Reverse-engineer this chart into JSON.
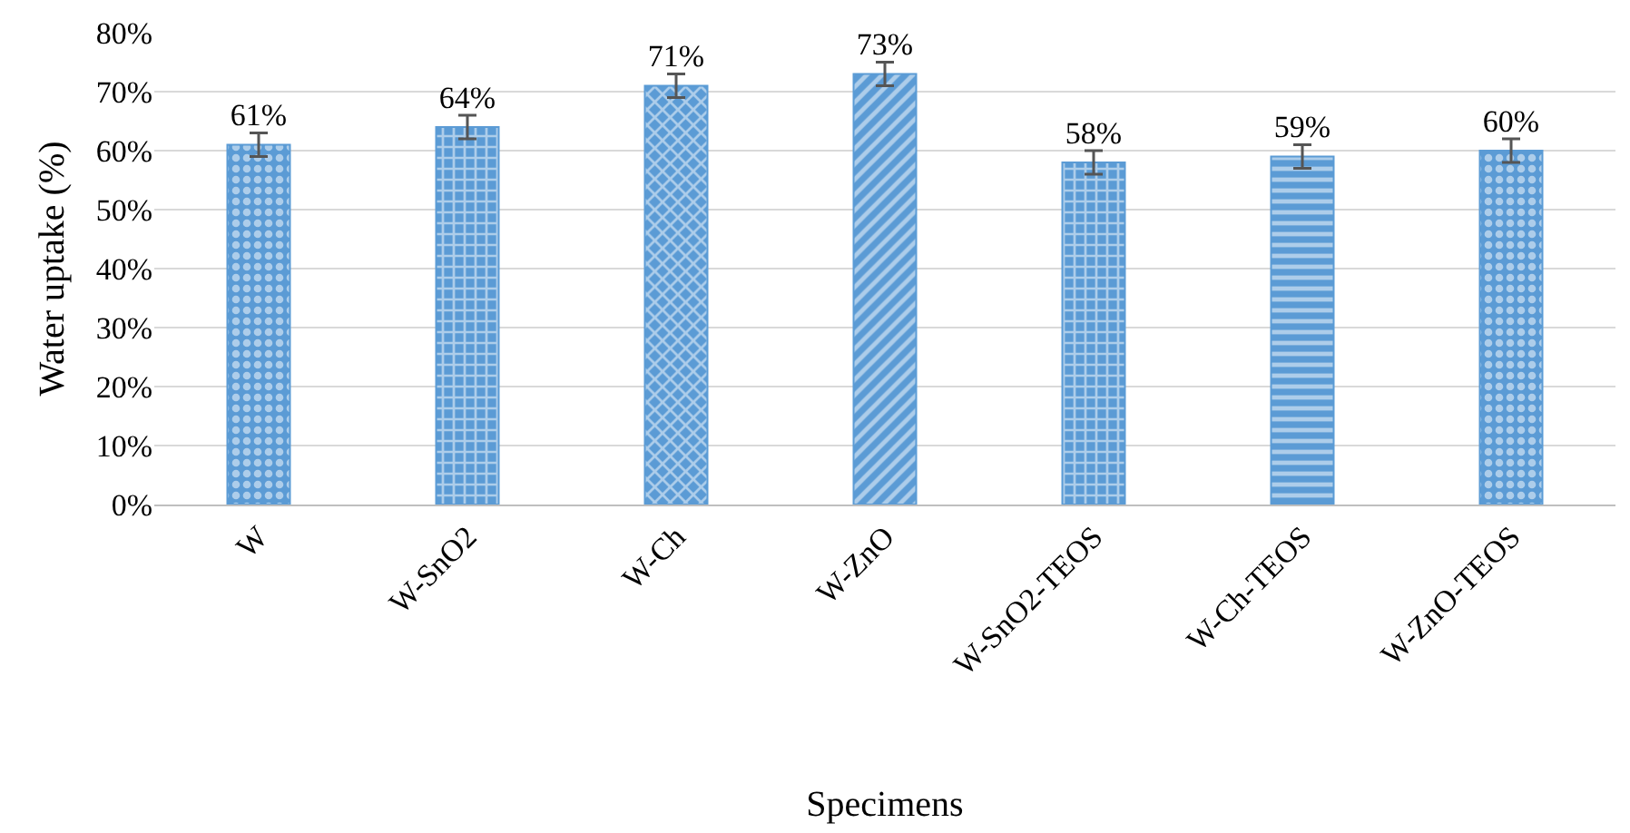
{
  "chart_data": {
    "type": "bar",
    "xlabel": "Specimens",
    "ylabel": "Water uptake (%)",
    "categories": [
      "W",
      "W-SnO2",
      "W-Ch",
      "W-ZnO",
      "W-SnO2-TEOS",
      "W-Ch-TEOS",
      "W-ZnO-TEOS"
    ],
    "values": [
      61,
      64,
      71,
      73,
      58,
      59,
      60
    ],
    "value_labels": [
      "61%",
      "64%",
      "71%",
      "73%",
      "58%",
      "59%",
      "60%"
    ],
    "errors": [
      2,
      2,
      2,
      2,
      2,
      2,
      2
    ],
    "color": "#5b9bd5",
    "ylim": [
      0,
      80
    ],
    "yticks": [
      {
        "value": 0,
        "label": "0%"
      },
      {
        "value": 10,
        "label": "10%"
      },
      {
        "value": 20,
        "label": "20%"
      },
      {
        "value": 30,
        "label": "30%"
      },
      {
        "value": 40,
        "label": "40%"
      },
      {
        "value": 50,
        "label": "50%"
      },
      {
        "value": 60,
        "label": "60%"
      },
      {
        "value": 70,
        "label": "70%"
      },
      {
        "value": 80,
        "label": "80%"
      }
    ],
    "grid": "y",
    "legend": false
  }
}
